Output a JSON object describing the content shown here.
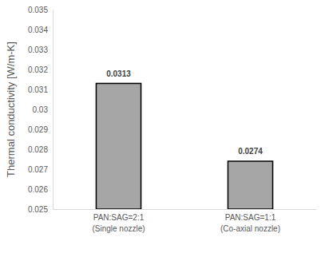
{
  "chart_data": {
    "type": "bar",
    "y_label": "Thermal conductivity [W/m-K]",
    "categories": [
      "PAN:SAG=2:1\n(Single nozzle)",
      "PAN:SAG=1:1\n(Co-axial nozzle)"
    ],
    "values": [
      0.0313,
      0.0274
    ],
    "color": "#a6a6a6",
    "ylim": [
      0.025,
      0.035
    ],
    "yticks": [
      0.025,
      0.026,
      0.027,
      0.028,
      0.029,
      0.03,
      0.031,
      0.032,
      0.033,
      0.034,
      0.035
    ],
    "grid": false,
    "data_labels": true
  }
}
